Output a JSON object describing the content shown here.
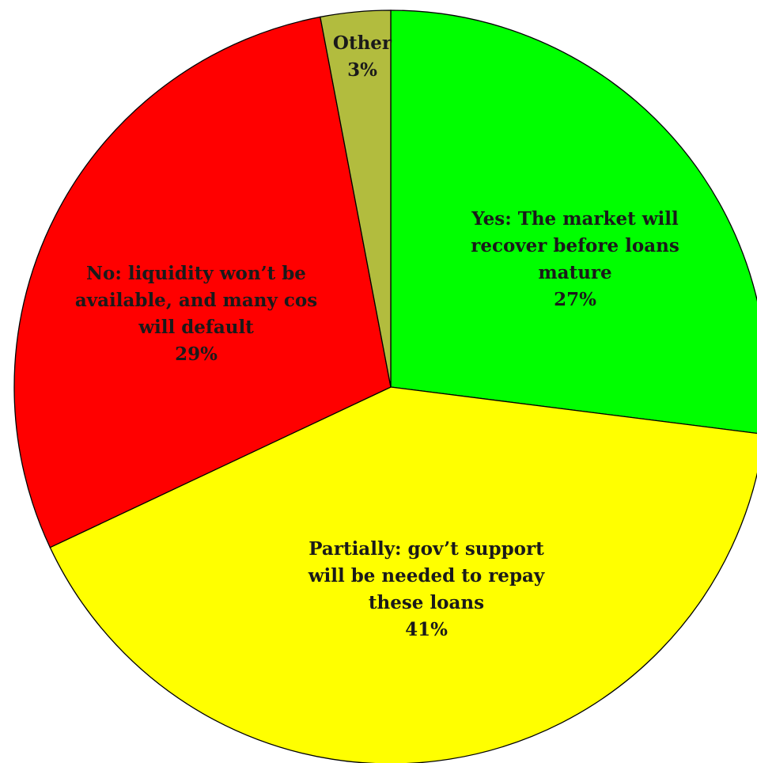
{
  "chart_data": {
    "type": "pie",
    "title": "",
    "start_angle_deg": 0,
    "direction": "clockwise",
    "slices": [
      {
        "lines": [
          "Yes: The market will",
          "recover before loans",
          "mature"
        ],
        "pct_label": "27%",
        "value": 27,
        "color": "#00ff00"
      },
      {
        "lines": [
          "Partially: gov’t support",
          "will be needed to repay",
          "these loans"
        ],
        "pct_label": "41%",
        "value": 41,
        "color": "#ffff00"
      },
      {
        "lines": [
          "No: liquidity won’t be",
          "available, and many cos",
          "will default"
        ],
        "pct_label": "29%",
        "value": 29,
        "color": "#ff0000"
      },
      {
        "lines": [
          "Other"
        ],
        "pct_label": "3%",
        "value": 3,
        "color": "#b2bc3e"
      }
    ]
  }
}
